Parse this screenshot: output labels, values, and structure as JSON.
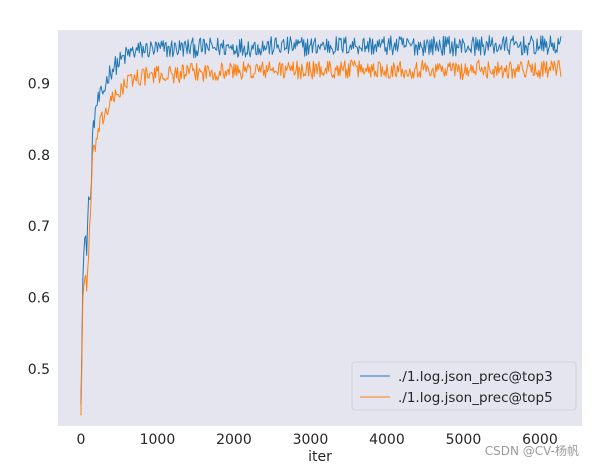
{
  "watermark": "CSDN @CV-杨帆",
  "chart_data": {
    "type": "line",
    "xlabel": "iter",
    "ylabel": "",
    "xlim": [
      -300,
      6550
    ],
    "ylim": [
      0.42,
      0.975
    ],
    "xticks": [
      0,
      1000,
      2000,
      3000,
      4000,
      5000,
      6000
    ],
    "yticks": [
      0.5,
      0.6,
      0.7,
      0.8,
      0.9
    ],
    "grid": false,
    "background": "#e5e5f0",
    "legend_position": "lower-right",
    "series": [
      {
        "name": "./1.log.json_prec@top3",
        "color": "#1f77b4",
        "x": [
          0,
          25,
          50,
          75,
          100,
          125,
          150,
          175,
          200,
          250,
          300,
          350,
          400,
          450,
          500,
          550,
          600,
          650,
          700,
          800,
          900,
          1000,
          1200,
          1400,
          1600,
          1800,
          2000,
          2200,
          2400,
          2600,
          2800,
          3000,
          3200,
          3400,
          3600,
          3800,
          4000,
          4200,
          4400,
          4600,
          4800,
          5000,
          5200,
          5400,
          5600,
          5800,
          6000,
          6200,
          6280
        ],
        "y": [
          0.45,
          0.64,
          0.68,
          0.67,
          0.74,
          0.73,
          0.82,
          0.85,
          0.87,
          0.88,
          0.89,
          0.91,
          0.92,
          0.925,
          0.93,
          0.935,
          0.94,
          0.943,
          0.945,
          0.947,
          0.948,
          0.948,
          0.949,
          0.95,
          0.95,
          0.951,
          0.951,
          0.951,
          0.952,
          0.952,
          0.952,
          0.952,
          0.953,
          0.953,
          0.954,
          0.953,
          0.953,
          0.953,
          0.953,
          0.953,
          0.953,
          0.952,
          0.953,
          0.953,
          0.953,
          0.953,
          0.953,
          0.953,
          0.953
        ],
        "noise": 0.014
      },
      {
        "name": "./1.log.json_prec@top5",
        "color": "#ff7f0e",
        "x": [
          0,
          25,
          50,
          75,
          100,
          125,
          150,
          175,
          200,
          250,
          300,
          350,
          400,
          450,
          500,
          550,
          600,
          650,
          700,
          800,
          900,
          1000,
          1200,
          1400,
          1600,
          1800,
          2000,
          2200,
          2400,
          2600,
          2800,
          3000,
          3200,
          3400,
          3600,
          3800,
          4000,
          4200,
          4400,
          4600,
          4800,
          5000,
          5200,
          5400,
          5600,
          5800,
          6000,
          6200,
          6280
        ],
        "y": [
          0.435,
          0.6,
          0.63,
          0.62,
          0.66,
          0.72,
          0.79,
          0.81,
          0.82,
          0.84,
          0.855,
          0.865,
          0.875,
          0.88,
          0.89,
          0.895,
          0.9,
          0.905,
          0.908,
          0.91,
          0.911,
          0.912,
          0.913,
          0.915,
          0.916,
          0.917,
          0.918,
          0.918,
          0.919,
          0.919,
          0.919,
          0.919,
          0.92,
          0.92,
          0.92,
          0.92,
          0.92,
          0.92,
          0.92,
          0.92,
          0.92,
          0.918,
          0.92,
          0.92,
          0.92,
          0.92,
          0.92,
          0.92,
          0.92
        ],
        "noise": 0.013
      }
    ]
  }
}
